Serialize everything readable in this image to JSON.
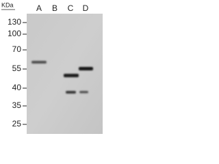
{
  "header": {
    "unit": "KDa"
  },
  "lanes": [
    "A",
    "B",
    "C",
    "D"
  ],
  "markers": [
    "130",
    "100",
    "70",
    "55",
    "40",
    "35",
    "25"
  ]
}
